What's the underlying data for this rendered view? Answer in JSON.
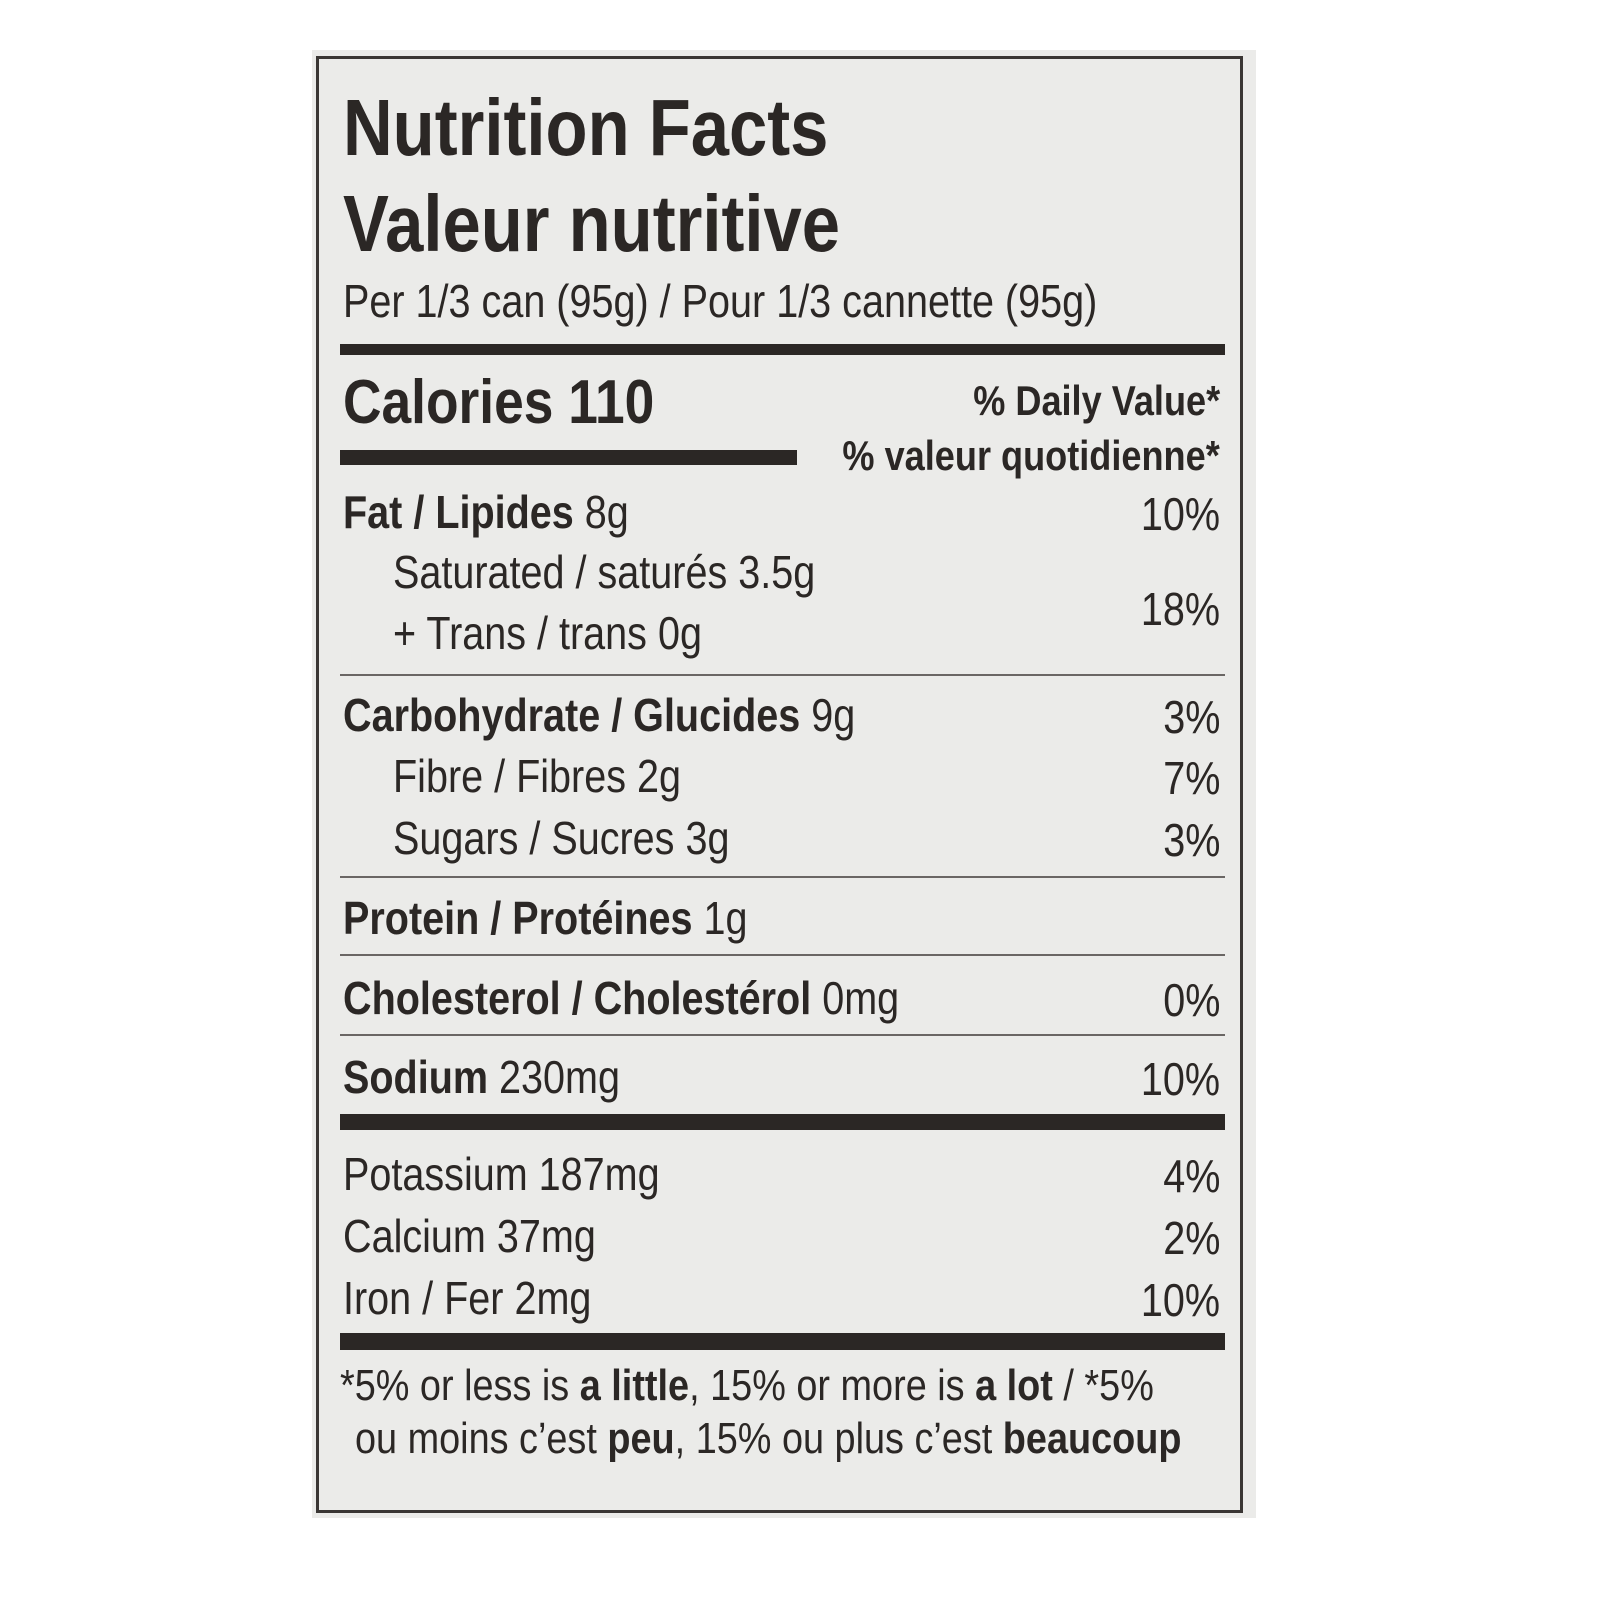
{
  "label": {
    "title_en": "Nutrition Facts",
    "title_fr": "Valeur nutritive",
    "serving": "Per 1/3 can (95g) / Pour 1/3 cannette (95g)",
    "calories_label": "Calories",
    "calories_value": "110",
    "dv_header_en": "% Daily Value*",
    "dv_header_fr": "% valeur quotidienne*",
    "fat": {
      "name": "Fat / Lipides",
      "amount": "8g",
      "dv": "10%"
    },
    "saturated": {
      "name": "Saturated / saturés",
      "amount": "3.5g"
    },
    "trans": {
      "name": "+ Trans / trans",
      "amount": "0g"
    },
    "sat_trans_dv": "18%",
    "carbohydrate": {
      "name": "Carbohydrate / Glucides",
      "amount": "9g",
      "dv": "3%"
    },
    "fibre": {
      "name": "Fibre / Fibres",
      "amount": "2g",
      "dv": "7%"
    },
    "sugars": {
      "name": "Sugars / Sucres",
      "amount": "3g",
      "dv": "3%"
    },
    "protein": {
      "name": "Protein / Protéines",
      "amount": "1g"
    },
    "cholesterol": {
      "name": "Cholesterol / Cholestérol",
      "amount": "0mg",
      "dv": "0%"
    },
    "sodium": {
      "name": "Sodium",
      "amount": "230mg",
      "dv": "10%"
    },
    "potassium": {
      "name": "Potassium",
      "amount": "187mg",
      "dv": "4%"
    },
    "calcium": {
      "name": "Calcium",
      "amount": "37mg",
      "dv": "2%"
    },
    "iron": {
      "name": "Iron / Fer",
      "amount": "2mg",
      "dv": "10%"
    },
    "footnote": {
      "p1": "*5% or less is ",
      "b1": "a little",
      "p2": ", 15% or more is ",
      "b2": "a lot",
      "p3": " / *5%",
      "p4": "ou moins c’est ",
      "b3": "peu",
      "p5": ", 15% ou plus c’est ",
      "b4": "beaucoup"
    }
  }
}
